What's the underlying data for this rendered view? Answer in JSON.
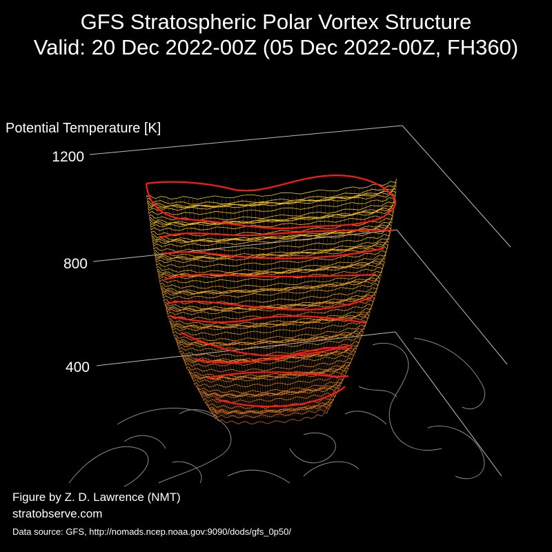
{
  "chart_data": {
    "type": "3d-isosurface",
    "title": "GFS Stratospheric Polar Vortex Structure",
    "subtitle": "Valid: 20 Dec 2022-00Z  (05 Dec 2022-00Z, FH360)",
    "zlabel": "Potential Temperature [K]",
    "z_ticks": [
      400,
      800,
      1200
    ],
    "zlim": [
      0,
      1200
    ],
    "grid": true,
    "colors": {
      "background": "#000000",
      "axis_lines": "#bfbfbf",
      "coastlines": "#8c8c8c",
      "contour_low": "#d2691e",
      "contour_high": "#ffd21a",
      "highlight_contour": "#ff1a1a"
    }
  },
  "credits": {
    "author": "Figure by Z. D. Lawrence (NMT)",
    "site": "stratobserve.com",
    "data_source": "Data source: GFS, http://nomads.ncep.noaa.gov:9090/dods/gfs_0p50/"
  }
}
